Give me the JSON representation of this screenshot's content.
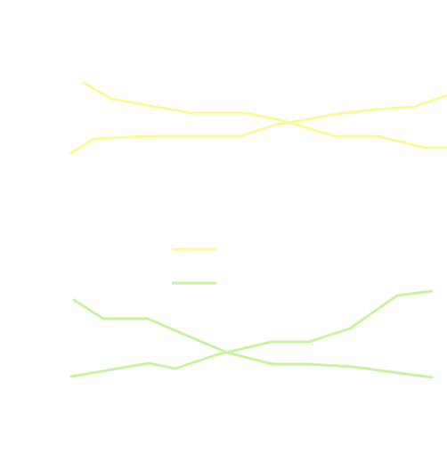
{
  "colors": {
    "yellow": "#f9f998",
    "green": "#c9f2a0",
    "background": "#ffffff"
  },
  "groups": [
    {
      "color": "yellow",
      "paths": [
        {
          "name": "yellow-descending-path"
        },
        {
          "name": "yellow-ascending-path"
        }
      ]
    },
    {
      "color": "green",
      "paths": [
        {
          "name": "green-descending-path"
        },
        {
          "name": "green-ascending-path"
        }
      ]
    }
  ],
  "legend": [
    {
      "color": "yellow"
    },
    {
      "color": "green"
    }
  ]
}
